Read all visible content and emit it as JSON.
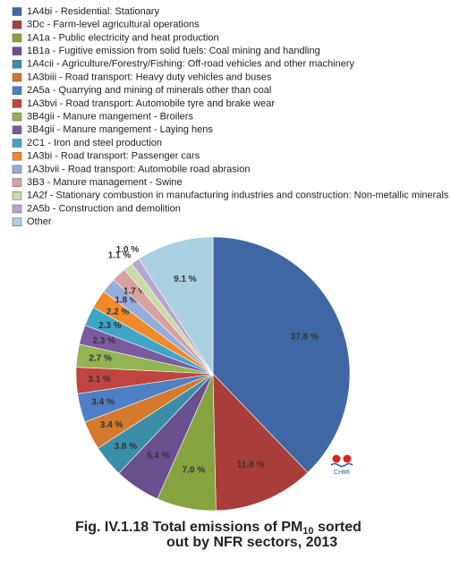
{
  "chart_data": {
    "type": "pie",
    "title": [
      "Fig. IV.1.18  Total emissions of PM",
      "10",
      " sorted",
      "out by NFR sectors, 2013"
    ],
    "logo_text": "CHMI",
    "categories": [
      "1A4bi - Residential: Stationary",
      "3Dc - Farm-level agricultural operations",
      "1A1a - Public electricity and heat production",
      "1B1a - Fugitive emission from solid fuels: Coal mining and handling",
      "1A4cii - Agriculture/Forestry/Fishing: Off-road vehicles and other machinery",
      "1A3biii - Road transport: Heavy duty vehicles and buses",
      "2A5a - Quarrying and mining of minerals other than coal",
      "1A3bvi - Road transport: Automobile tyre and brake wear",
      "3B4gii - Manure mangement -  Broilers",
      "3B4gii - Manure mangement -  Laying hens",
      "2C1 - Iron and steel production",
      "1A3bi - Road transport: Passenger cars",
      "1A3bvii - Road transport: Automobile road abrasion",
      "3B3 - Manure management - Swine",
      "1A2f - Stationary combustion in manufacturing industries and construction: Non-metallic minerals",
      "2A5b - Construction and demolition",
      "Other"
    ],
    "values": [
      37.8,
      11.8,
      7.0,
      5.4,
      3.8,
      3.4,
      3.4,
      3.1,
      2.7,
      2.3,
      2.3,
      2.2,
      1.8,
      1.7,
      1.1,
      1.0,
      9.1
    ],
    "value_labels": [
      "37.8 %",
      "11.8 %",
      "7.0 %",
      "5.4 %",
      "3.8 %",
      "3.4 %",
      "3.4 %",
      "3.1 %",
      "2.7 %",
      "2.3 %",
      "2.3 %",
      "2.2 %",
      "1.8 %",
      "1.7 %",
      "1.1 %",
      "1.0 %",
      "9.1 %"
    ],
    "colors": [
      "#3f67a3",
      "#a83d3a",
      "#86a340",
      "#6a4f8f",
      "#3a8ea8",
      "#d3782c",
      "#4f7fc4",
      "#c0443f",
      "#93b452",
      "#7a5ba0",
      "#3ea6c4",
      "#f08a2a",
      "#94aedb",
      "#d9a0a0",
      "#c8dba8",
      "#b8a7cc",
      "#a9d0e0"
    ]
  }
}
